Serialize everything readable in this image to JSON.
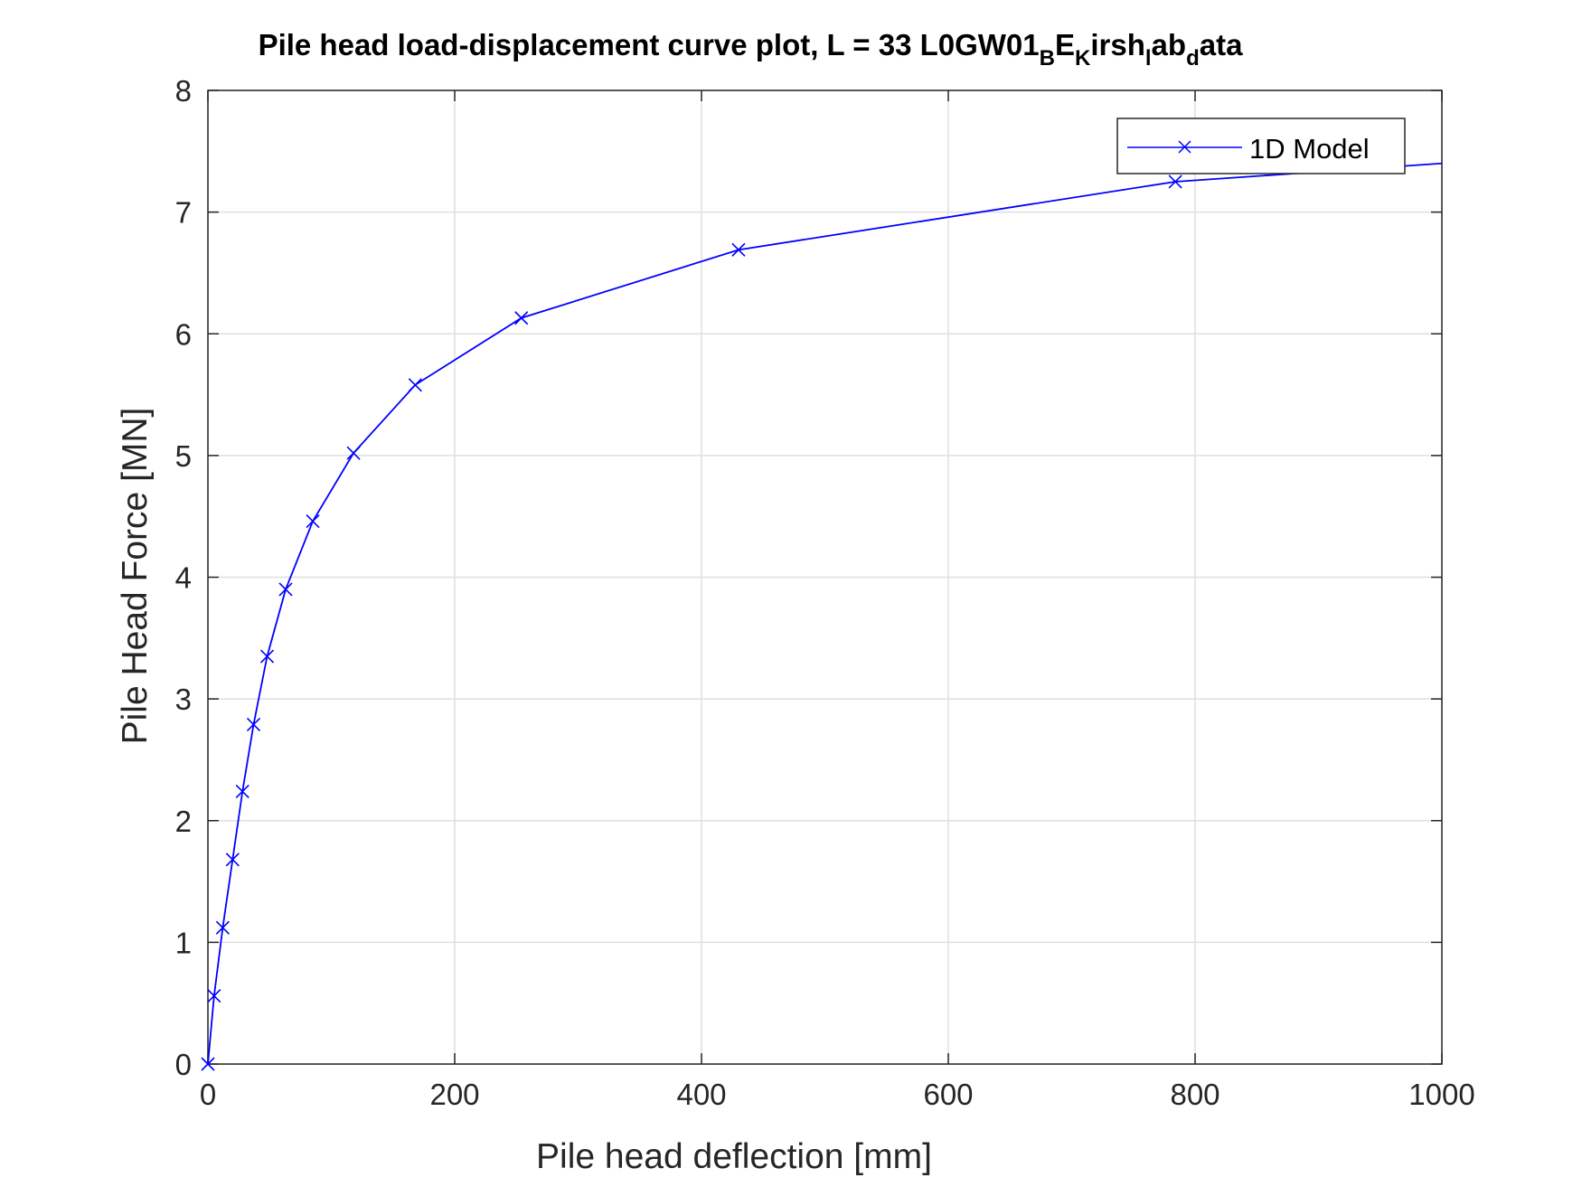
{
  "chart_data": {
    "type": "line",
    "title": "Pile head load-displacement curve plot, L = 33 L0GW01",
    "title_subscripts": [
      {
        "sub": "B",
        "after": "E"
      },
      {
        "sub": "K",
        "after": "irsh"
      },
      {
        "sub": "l",
        "after": "ab"
      },
      {
        "sub": "d",
        "after": "ata"
      }
    ],
    "xlabel": "Pile head deflection [mm]",
    "ylabel": "Pile Head Force [MN]",
    "xlim": [
      0,
      1000
    ],
    "ylim": [
      0,
      8
    ],
    "xticks": [
      0,
      200,
      400,
      600,
      800,
      1000
    ],
    "yticks": [
      0,
      1,
      2,
      3,
      4,
      5,
      6,
      7,
      8
    ],
    "grid": true,
    "legend_position": "top-right",
    "series": [
      {
        "name": "1D Model",
        "color": "#0000ff",
        "marker": "x",
        "x": [
          0,
          5,
          12,
          20,
          28,
          37,
          48,
          63,
          85,
          118,
          168,
          254,
          430,
          784,
          1000
        ],
        "y": [
          0,
          0.56,
          1.12,
          1.68,
          2.24,
          2.79,
          3.35,
          3.9,
          4.46,
          5.02,
          5.58,
          6.13,
          6.69,
          7.25,
          7.4
        ],
        "marker_count": 14
      }
    ]
  }
}
